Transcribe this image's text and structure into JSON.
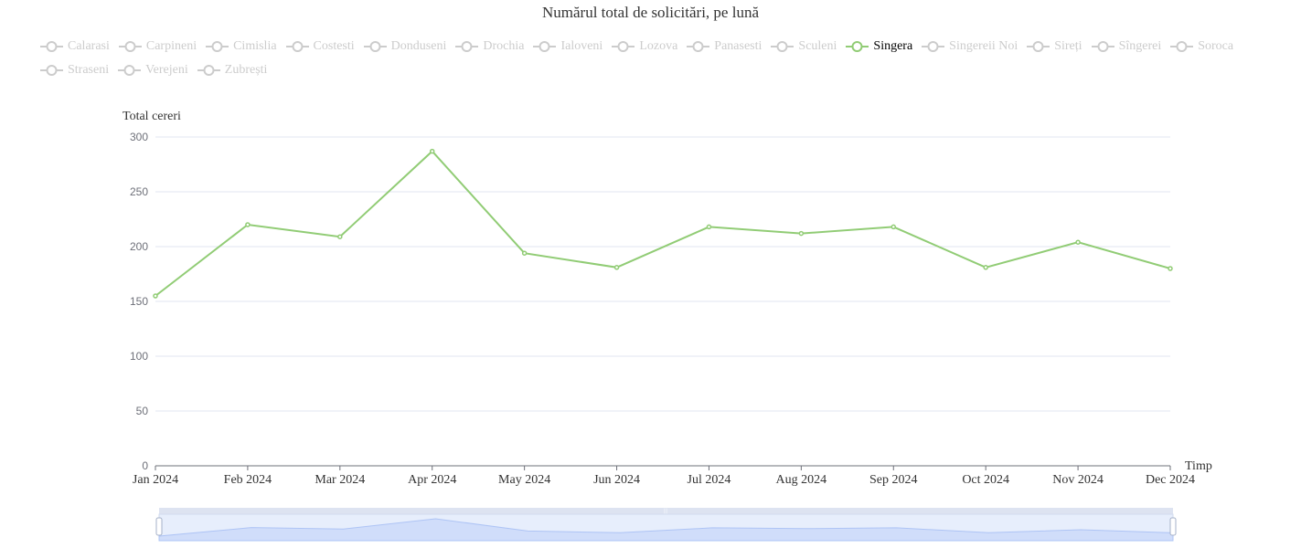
{
  "chart_data": {
    "type": "line",
    "title": "Numărul total de solicitări, pe lună",
    "xlabel": "Timp",
    "ylabel": "Total cereri",
    "ylim": [
      0,
      300
    ],
    "yticks": [
      "0",
      "50",
      "100",
      "150",
      "200",
      "250",
      "300"
    ],
    "categories": [
      "Jan 2024",
      "Feb 2024",
      "Mar 2024",
      "Apr 2024",
      "May 2024",
      "Jun 2024",
      "Jul 2024",
      "Aug 2024",
      "Sep 2024",
      "Oct 2024",
      "Nov 2024",
      "Dec 2024"
    ],
    "series": [
      {
        "name": "Singera",
        "color": "#91cc75",
        "values": [
          155,
          220,
          209,
          287,
          194,
          181,
          218,
          212,
          218,
          181,
          204,
          180
        ]
      }
    ],
    "legend": {
      "placement": "top-left",
      "items": [
        "Calarasi",
        "Carpineni",
        "Cimislia",
        "Costesti",
        "Donduseni",
        "Drochia",
        "Ialoveni",
        "Lozova",
        "Panasesti",
        "Sculeni",
        "Singera",
        "Singereii Noi",
        "Sireți",
        "Sîngerei",
        "Soroca",
        "Straseni",
        "Verejeni",
        "Zubrești"
      ],
      "selected": [
        "Singera"
      ]
    },
    "grid": true,
    "datazoom": {
      "start_percent": 0,
      "end_percent": 100
    }
  }
}
